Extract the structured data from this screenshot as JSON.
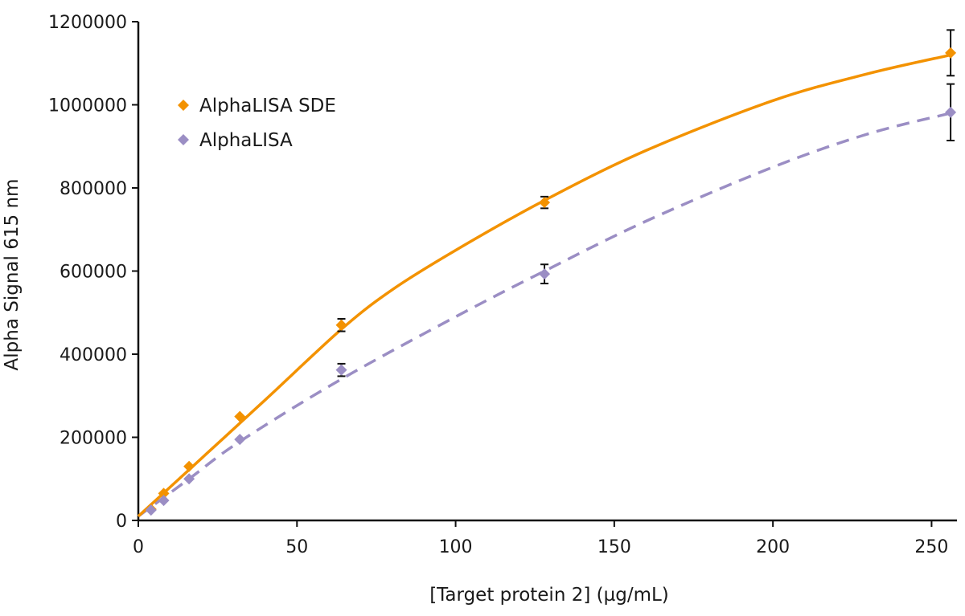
{
  "chart_data": {
    "type": "scatter",
    "xlabel": "[Target protein 2] (µg/mL)",
    "ylabel": "Alpha Signal 615 nm",
    "xlim": [
      0,
      258
    ],
    "ylim": [
      0,
      1200000
    ],
    "x_ticks": [
      0,
      50,
      100,
      150,
      200,
      250
    ],
    "y_ticks": [
      0,
      200000,
      400000,
      600000,
      800000,
      1000000,
      1200000
    ],
    "grid": false,
    "legend_position": "top-left",
    "series": [
      {
        "name": "AlphaLISA SDE",
        "color": "#F39200",
        "marker": "diamond",
        "line_style": "solid",
        "points": [
          {
            "x": 4,
            "y": 27000,
            "err": 0
          },
          {
            "x": 8,
            "y": 65000,
            "err": 0
          },
          {
            "x": 16,
            "y": 130000,
            "err": 0
          },
          {
            "x": 32,
            "y": 250000,
            "err": 0
          },
          {
            "x": 64,
            "y": 470000,
            "err": 15000
          },
          {
            "x": 128,
            "y": 765000,
            "err": 14000
          },
          {
            "x": 256,
            "y": 1125000,
            "err": 55000
          }
        ],
        "fit_curve": [
          [
            0,
            10000
          ],
          [
            20,
            150000
          ],
          [
            40,
            290000
          ],
          [
            64,
            460000
          ],
          [
            80,
            555000
          ],
          [
            100,
            650000
          ],
          [
            128,
            770000
          ],
          [
            160,
            890000
          ],
          [
            200,
            1010000
          ],
          [
            230,
            1075000
          ],
          [
            256,
            1120000
          ]
        ]
      },
      {
        "name": "AlphaLISA",
        "color": "#9B8EC4",
        "marker": "diamond",
        "line_style": "dashed",
        "points": [
          {
            "x": 4,
            "y": 25000,
            "err": 0
          },
          {
            "x": 8,
            "y": 48000,
            "err": 0
          },
          {
            "x": 16,
            "y": 100000,
            "err": 0
          },
          {
            "x": 32,
            "y": 195000,
            "err": 0
          },
          {
            "x": 64,
            "y": 362000,
            "err": 15000
          },
          {
            "x": 128,
            "y": 593000,
            "err": 23000
          },
          {
            "x": 256,
            "y": 982000,
            "err": 68000
          }
        ],
        "fit_curve": [
          [
            0,
            10000
          ],
          [
            16,
            100000
          ],
          [
            32,
            190000
          ],
          [
            64,
            340000
          ],
          [
            100,
            490000
          ],
          [
            128,
            600000
          ],
          [
            160,
            720000
          ],
          [
            200,
            850000
          ],
          [
            230,
            930000
          ],
          [
            256,
            980000
          ]
        ]
      }
    ]
  }
}
